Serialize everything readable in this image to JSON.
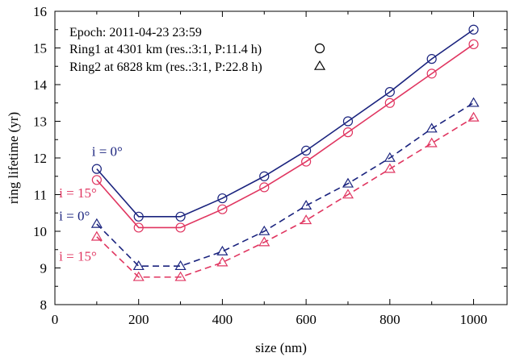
{
  "chart_data": {
    "type": "line",
    "xlabel": "size (nm)",
    "ylabel": "ring lifetime (yr)",
    "xlim": [
      0,
      1080
    ],
    "ylim": [
      8,
      16
    ],
    "xticks": [
      0,
      200,
      400,
      600,
      800,
      1000
    ],
    "yticks": [
      8,
      9,
      10,
      11,
      12,
      13,
      14,
      15,
      16
    ],
    "grid": false,
    "legend": {
      "placement": "top-left",
      "epoch_label": "Epoch: 2011-04-23 23:59",
      "entries": [
        {
          "label": "Ring1 at 4301 km (res.:3:1, P:11.4 h)",
          "marker": "circle"
        },
        {
          "label": "Ring2 at 6828 km (res.:3:1, P:22.8 h)",
          "marker": "triangle"
        }
      ]
    },
    "x": [
      100,
      200,
      300,
      400,
      500,
      600,
      700,
      800,
      900,
      1000
    ],
    "series": [
      {
        "ring": "Ring1",
        "inclination": "i = 0°",
        "marker": "circle",
        "dash": false,
        "color": "#1a237e",
        "values": [
          11.7,
          10.4,
          10.4,
          10.9,
          11.5,
          12.2,
          13.0,
          13.8,
          14.7,
          15.5
        ]
      },
      {
        "ring": "Ring1",
        "inclination": "i = 15°",
        "marker": "circle",
        "dash": false,
        "color": "#e03560",
        "values": [
          11.4,
          10.1,
          10.1,
          10.6,
          11.2,
          11.9,
          12.7,
          13.5,
          14.3,
          15.1
        ]
      },
      {
        "ring": "Ring2",
        "inclination": "i = 0°",
        "marker": "triangle",
        "dash": true,
        "color": "#1a237e",
        "values": [
          10.2,
          9.05,
          9.05,
          9.45,
          10.0,
          10.7,
          11.3,
          12.0,
          12.8,
          13.5
        ]
      },
      {
        "ring": "Ring2",
        "inclination": "i = 15°",
        "marker": "triangle",
        "dash": true,
        "color": "#e03560",
        "values": [
          9.85,
          8.75,
          8.75,
          9.15,
          9.7,
          10.3,
          11.0,
          11.7,
          12.4,
          13.1
        ]
      }
    ],
    "annotations": [
      {
        "text": "i = 0°",
        "color": "#1a237e",
        "x": 125,
        "y": 12.05,
        "anchor": "middle"
      },
      {
        "text": "i = 15°",
        "color": "#e03560",
        "x": 10,
        "y": 10.92,
        "anchor": "start"
      },
      {
        "text": "i = 0°",
        "color": "#1a237e",
        "x": 10,
        "y": 10.3,
        "anchor": "start"
      },
      {
        "text": "i = 15°",
        "color": "#e03560",
        "x": 10,
        "y": 9.2,
        "anchor": "start"
      }
    ]
  }
}
